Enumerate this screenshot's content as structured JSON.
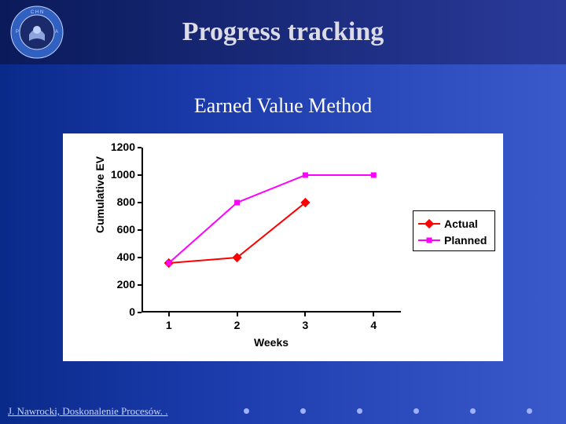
{
  "slide": {
    "title": "Progress tracking",
    "subtitle": "Earned Value Method",
    "footer": "J. Nawrocki, Doskonalenie Procesów. ."
  },
  "chart": {
    "type": "line",
    "x_label": "Weeks",
    "y_label": "Cumulative EV",
    "x_ticks": [
      1,
      2,
      3,
      4
    ],
    "y_ticks": [
      0,
      200,
      400,
      600,
      800,
      1000,
      1200
    ],
    "xlim": [
      0.6,
      4.4
    ],
    "ylim": [
      0,
      1200
    ],
    "background_color": "#ffffff",
    "axis_color": "#000000",
    "tick_fontsize": 14,
    "tick_fontweight": "bold",
    "label_fontsize": 14,
    "series": [
      {
        "name": "Actual",
        "x": [
          1,
          2,
          3
        ],
        "y": [
          360,
          400,
          800
        ],
        "color": "#ff0000",
        "marker": "diamond",
        "marker_size": 8,
        "line_width": 2
      },
      {
        "name": "Planned",
        "x": [
          1,
          2,
          3,
          4
        ],
        "y": [
          360,
          800,
          1000,
          1000
        ],
        "color": "#ff00ff",
        "marker": "square",
        "marker_size": 7,
        "line_width": 2
      }
    ],
    "legend": {
      "position": "right",
      "border_color": "#000000"
    }
  },
  "logo": {
    "outer_color": "#3060c0",
    "inner_color": "#1a2a6a",
    "text_color": "#ffffff"
  },
  "footer_dots": {
    "color": "#a0b0ff",
    "count": 6,
    "start_x": 310,
    "spacing": 72
  }
}
